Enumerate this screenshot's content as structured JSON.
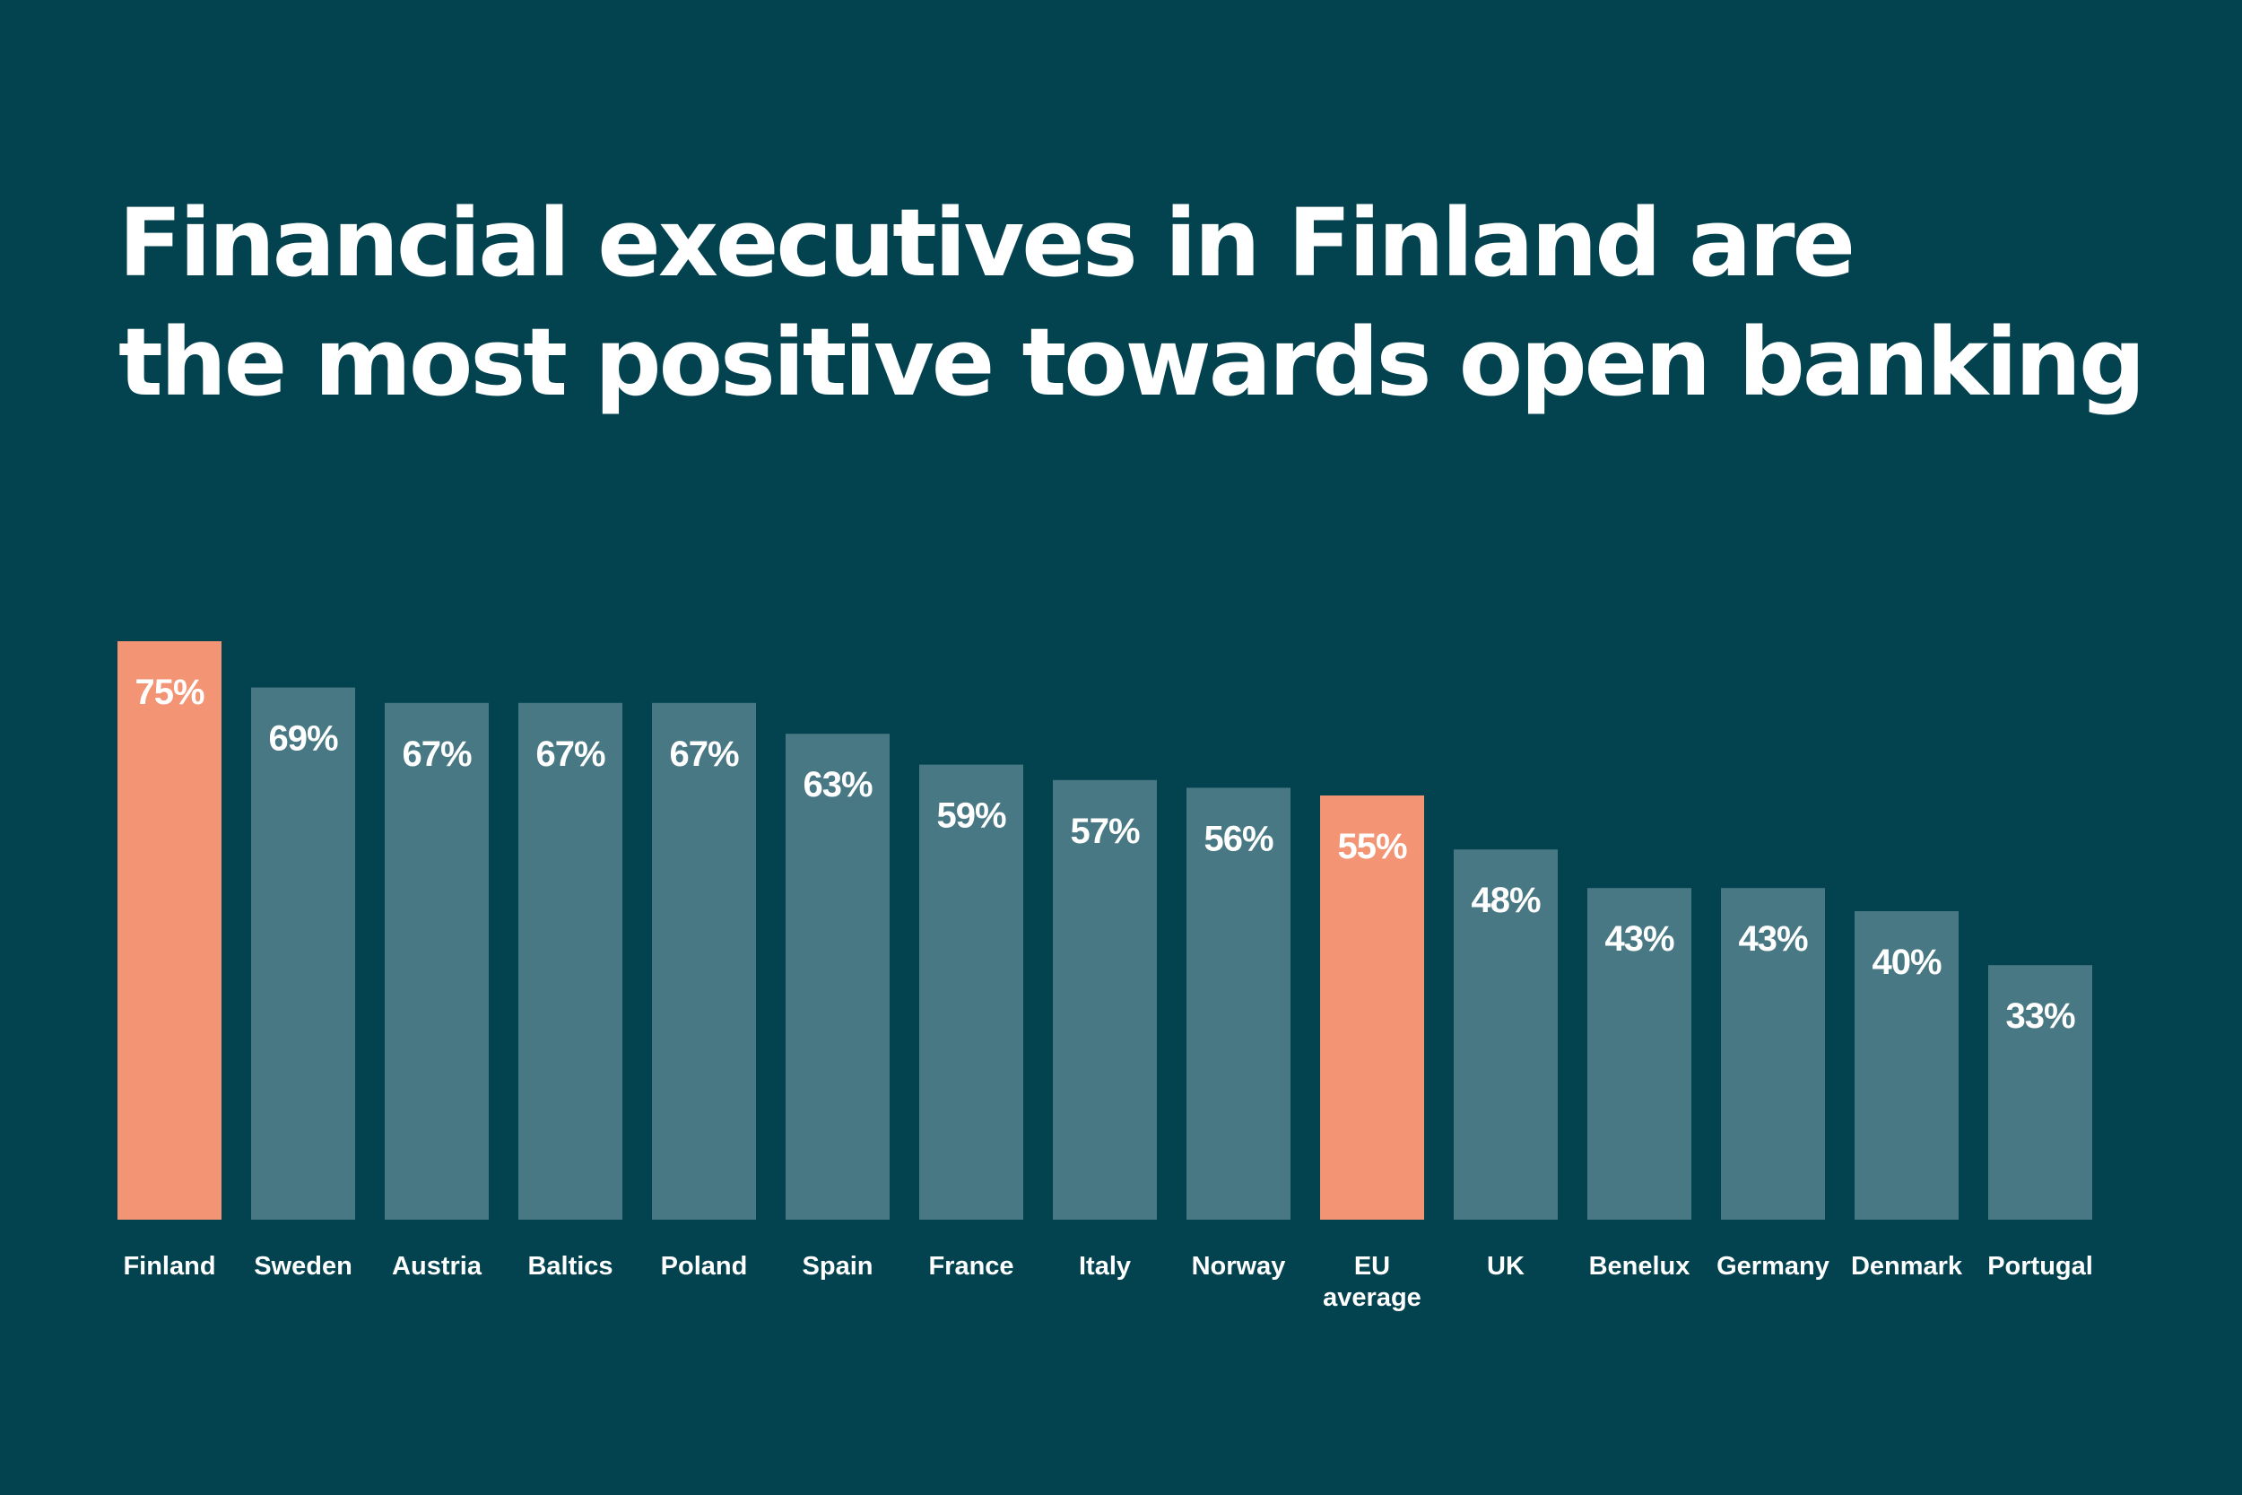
{
  "title": {
    "line1": "Financial executives in Finland are",
    "line2": "the most positive towards open banking"
  },
  "colors": {
    "background": "#02434f",
    "bar": "#477883",
    "highlight": "#f39574",
    "text": "#ffffff"
  },
  "chart_data": {
    "type": "bar",
    "title": "Financial executives in Finland are the most positive towards open banking",
    "xlabel": "",
    "ylabel": "",
    "categories": [
      [
        "Finland"
      ],
      [
        "Sweden"
      ],
      [
        "Austria"
      ],
      [
        "Baltics"
      ],
      [
        "Poland"
      ],
      [
        "Spain"
      ],
      [
        "France"
      ],
      [
        "Italy"
      ],
      [
        "Norway"
      ],
      [
        "EU",
        "average"
      ],
      [
        "UK"
      ],
      [
        "Benelux"
      ],
      [
        "Germany"
      ],
      [
        "Denmark"
      ],
      [
        "Portugal"
      ]
    ],
    "values": [
      75,
      69,
      67,
      67,
      67,
      63,
      59,
      57,
      56,
      55,
      48,
      43,
      43,
      40,
      33
    ],
    "value_labels": [
      "75%",
      "69%",
      "67%",
      "67%",
      "67%",
      "63%",
      "59%",
      "57%",
      "56%",
      "55%",
      "48%",
      "43%",
      "43%",
      "40%",
      "33%"
    ],
    "highlighted": [
      true,
      false,
      false,
      false,
      false,
      false,
      false,
      false,
      false,
      true,
      false,
      false,
      false,
      false,
      false
    ],
    "ylim": [
      0,
      75
    ],
    "grid": false,
    "legend": "none"
  }
}
